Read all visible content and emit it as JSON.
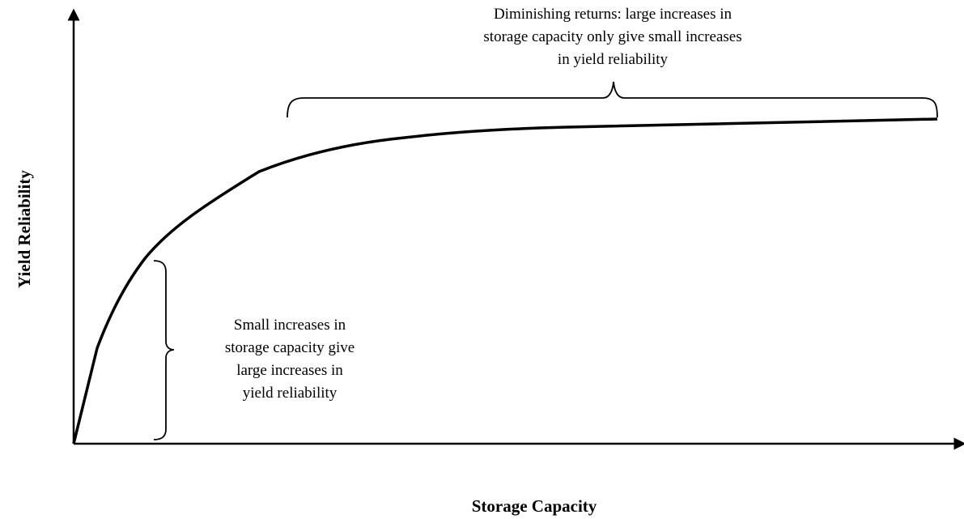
{
  "x_axis_label": "Storage Capacity",
  "y_axis_label": "Yield Reliability",
  "annotations": [
    {
      "lines": [
        "Diminishing returns: large increases in",
        "storage capacity only give small increases",
        "in yield reliability"
      ]
    },
    {
      "lines": [
        "Small increases in",
        "storage capacity give",
        "large increases in",
        "yield reliability"
      ]
    }
  ]
}
